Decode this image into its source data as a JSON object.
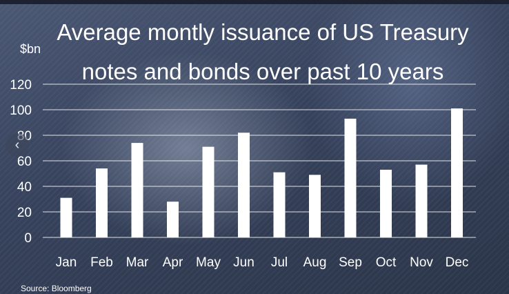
{
  "chart_data": {
    "type": "bar",
    "title_lines": [
      "Average montly issuance of US Treasury",
      "notes and bonds over past 10 years"
    ],
    "unit_label": "$bn",
    "categories": [
      "Jan",
      "Feb",
      "Mar",
      "Apr",
      "May",
      "Jun",
      "Jul",
      "Aug",
      "Sep",
      "Oct",
      "Nov",
      "Dec"
    ],
    "values": [
      31,
      54,
      74,
      28,
      71,
      82,
      51,
      49,
      93,
      53,
      57,
      101
    ],
    "ylim": [
      0,
      120
    ],
    "yticks": [
      "0",
      "20",
      "40",
      "60",
      "80",
      "100",
      "120"
    ],
    "grid": true,
    "bar_color": "#ffffff",
    "source": "Source: Bloomberg"
  },
  "nav": {
    "prev_icon": "‹"
  }
}
